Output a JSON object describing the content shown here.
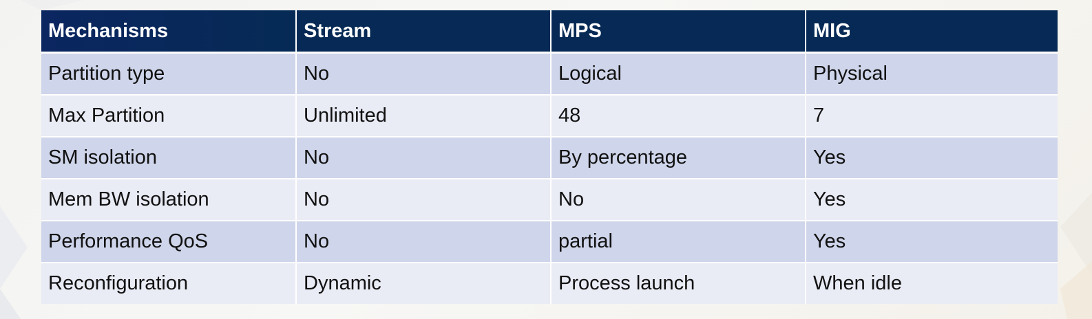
{
  "table": {
    "headers": [
      "Mechanisms",
      "Stream",
      "MPS",
      "MIG"
    ],
    "rows": [
      [
        "Partition type",
        "No",
        "Logical",
        "Physical"
      ],
      [
        "Max Partition",
        "Unlimited",
        "48",
        "7"
      ],
      [
        "SM isolation",
        "No",
        "By percentage",
        "Yes"
      ],
      [
        "Mem BW isolation",
        "No",
        "No",
        "Yes"
      ],
      [
        "Performance QoS",
        "No",
        "partial",
        "Yes"
      ],
      [
        "Reconfiguration",
        "Dynamic",
        "Process launch",
        "When idle"
      ]
    ]
  },
  "colors": {
    "header_bg": "#062a55",
    "header_text": "#ffffff",
    "row_dark": "#cfd5ea",
    "row_light": "#e9ebf5"
  }
}
